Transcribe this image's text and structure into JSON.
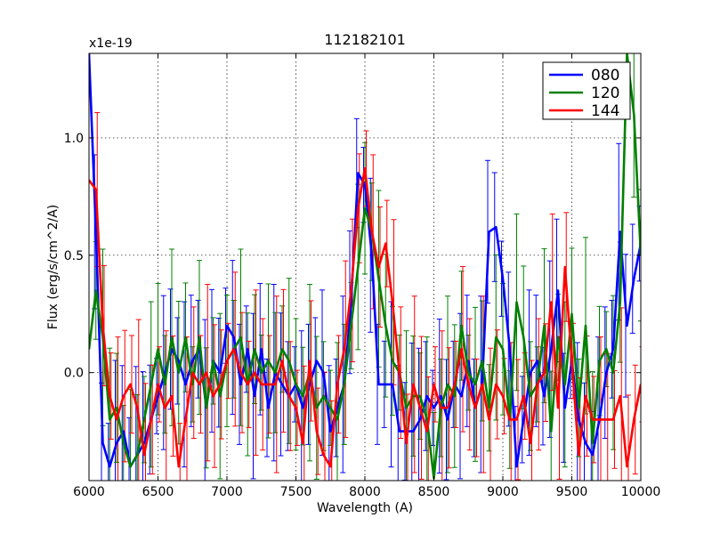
{
  "chart_data": {
    "type": "line",
    "title": "112182101",
    "xlabel": "Wavelength (A)",
    "ylabel": "Flux (erg/s/cm^2/A)",
    "offset_label": "x1e-19",
    "xlim": [
      6000,
      10000
    ],
    "ylim": [
      -0.46,
      1.36
    ],
    "xticks": [
      6000,
      6500,
      7000,
      7500,
      8000,
      8500,
      9000,
      9500,
      10000
    ],
    "xtick_labels": [
      "6000",
      "6500",
      "7000",
      "7500",
      "8000",
      "8500",
      "9000",
      "9500",
      "10000"
    ],
    "yticks": [
      0.0,
      0.5,
      1.0
    ],
    "ytick_labels": [
      "0.0",
      "0.5",
      "1.0"
    ],
    "grid": true,
    "legend_position": "top-right",
    "x": [
      6000,
      6050,
      6100,
      6150,
      6200,
      6250,
      6300,
      6350,
      6400,
      6450,
      6500,
      6550,
      6600,
      6650,
      6700,
      6750,
      6800,
      6850,
      6900,
      6950,
      7000,
      7050,
      7100,
      7150,
      7200,
      7250,
      7300,
      7350,
      7400,
      7450,
      7500,
      7550,
      7600,
      7650,
      7700,
      7750,
      7800,
      7850,
      7900,
      7950,
      8000,
      8050,
      8100,
      8150,
      8200,
      8250,
      8300,
      8350,
      8400,
      8450,
      8500,
      8550,
      8600,
      8650,
      8700,
      8750,
      8800,
      8850,
      8900,
      8950,
      9000,
      9050,
      9100,
      9150,
      9200,
      9250,
      9300,
      9350,
      9400,
      9450,
      9500,
      9550,
      9600,
      9650,
      9700,
      9750,
      9800,
      9850,
      9900,
      9950,
      10000
    ],
    "series": [
      {
        "name": "080",
        "color": "#0000ff",
        "values": [
          1.36,
          0.6,
          -0.3,
          -0.4,
          -0.3,
          -0.25,
          -0.4,
          -0.35,
          -0.3,
          -0.2,
          -0.1,
          0.0,
          0.1,
          0.05,
          -0.05,
          0.05,
          0.1,
          -0.15,
          0.05,
          0.0,
          0.2,
          0.15,
          -0.05,
          0.1,
          -0.1,
          0.1,
          -0.15,
          0.0,
          -0.05,
          -0.1,
          -0.05,
          -0.15,
          -0.05,
          0.05,
          0.0,
          -0.25,
          -0.15,
          -0.05,
          0.3,
          0.85,
          0.8,
          0.5,
          -0.05,
          -0.05,
          -0.05,
          -0.25,
          -0.25,
          -0.25,
          -0.2,
          -0.1,
          -0.15,
          -0.1,
          -0.2,
          -0.05,
          -0.1,
          0.05,
          -0.15,
          -0.05,
          0.6,
          0.62,
          0.4,
          0.1,
          -0.4,
          -0.2,
          0.0,
          0.05,
          -0.1,
          0.1,
          0.35,
          -0.15,
          0.05,
          -0.2,
          -0.3,
          -0.35,
          -0.2,
          0.0,
          0.1,
          0.6,
          0.2,
          0.4,
          0.55
        ]
      },
      {
        "name": "120",
        "color": "#008000",
        "values": [
          0.1,
          0.35,
          0.15,
          -0.2,
          -0.15,
          -0.3,
          -0.4,
          -0.35,
          -0.2,
          -0.05,
          0.1,
          -0.05,
          0.15,
          0.0,
          0.15,
          -0.05,
          0.15,
          -0.15,
          0.05,
          -0.1,
          0.05,
          0.1,
          0.15,
          -0.05,
          0.1,
          0.0,
          0.05,
          0.0,
          0.1,
          0.05,
          -0.05,
          -0.1,
          0.0,
          -0.15,
          -0.1,
          -0.15,
          -0.2,
          -0.05,
          0.2,
          0.45,
          0.7,
          0.6,
          0.4,
          0.2,
          0.05,
          0.0,
          -0.15,
          -0.1,
          -0.1,
          -0.2,
          -0.45,
          -0.15,
          -0.05,
          -0.1,
          0.2,
          0.0,
          -0.05,
          0.05,
          -0.15,
          0.15,
          0.1,
          -0.2,
          0.3,
          0.15,
          -0.1,
          -0.05,
          0.2,
          -0.25,
          0.15,
          -0.05,
          0.25,
          -0.15,
          0.2,
          -0.3,
          0.05,
          0.1,
          0.0,
          0.3,
          1.36,
          1.1,
          0.5
        ]
      },
      {
        "name": "144",
        "color": "#ff0000",
        "values": [
          0.82,
          0.78,
          0.2,
          -0.1,
          -0.2,
          -0.1,
          -0.05,
          -0.15,
          -0.35,
          -0.2,
          -0.05,
          -0.15,
          -0.1,
          -0.4,
          -0.2,
          0.0,
          -0.05,
          0.0,
          -0.1,
          -0.05,
          0.05,
          0.1,
          0.0,
          -0.05,
          0.0,
          -0.05,
          -0.05,
          -0.05,
          0.05,
          -0.1,
          -0.15,
          -0.3,
          0.05,
          -0.25,
          -0.35,
          -0.4,
          -0.05,
          0.1,
          0.35,
          0.7,
          0.87,
          0.6,
          0.45,
          0.55,
          0.3,
          0.0,
          -0.3,
          -0.05,
          -0.15,
          -0.25,
          -0.05,
          -0.15,
          -0.15,
          -0.05,
          0.1,
          -0.05,
          -0.15,
          -0.05,
          -0.2,
          -0.05,
          -0.1,
          -0.2,
          -0.2,
          -0.1,
          -0.3,
          -0.05,
          0.0,
          0.3,
          -0.15,
          0.45,
          0.05,
          -0.35,
          -0.1,
          -0.2,
          -0.2,
          -0.2,
          -0.2,
          -0.1,
          -0.4,
          -0.2,
          -0.05
        ]
      }
    ]
  }
}
